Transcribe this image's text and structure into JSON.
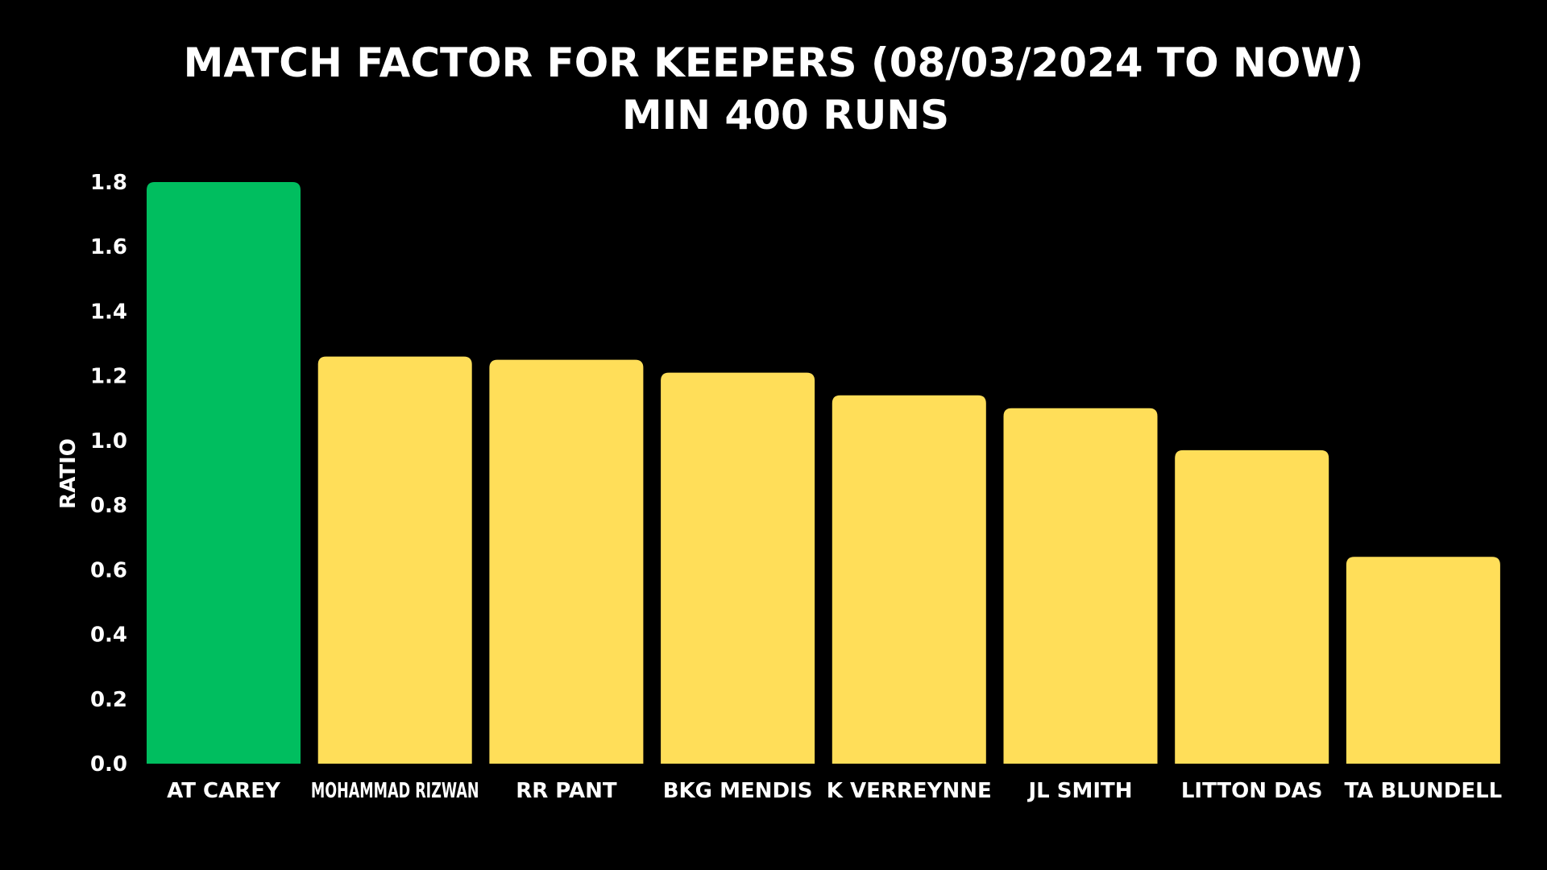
{
  "chart_data": {
    "type": "bar",
    "title": "MATCH FACTOR FOR KEEPERS (08/03/2024 TO NOW)",
    "subtitle": "MIN 400 RUNS",
    "xlabel": "",
    "ylabel": "RATIO",
    "ylim": [
      0,
      1.8
    ],
    "yticks": [
      "0.0",
      "0.2",
      "0.4",
      "0.6",
      "0.8",
      "1.0",
      "1.2",
      "1.4",
      "1.6",
      "1.8"
    ],
    "yticks_values": [
      0,
      0.2,
      0.4,
      0.6,
      0.8,
      1.0,
      1.2,
      1.4,
      1.6,
      1.8
    ],
    "grid": false,
    "legend": "none",
    "categories": [
      "AT CAREY",
      "MOHAMMAD RIZWAN",
      "RR PANT",
      "BKG MENDIS",
      "K VERREYNNE",
      "JL SMITH",
      "LITTON DAS",
      "TA BLUNDELL"
    ],
    "values": [
      1.8,
      1.26,
      1.25,
      1.21,
      1.14,
      1.1,
      0.97,
      0.64
    ],
    "colors": [
      "#00BE5F",
      "#FFDE59",
      "#FFDE59",
      "#FFDE59",
      "#FFDE59",
      "#FFDE59",
      "#FFDE59",
      "#FFDE59"
    ],
    "background": "#000000",
    "text_color": "#FFFFFF"
  }
}
